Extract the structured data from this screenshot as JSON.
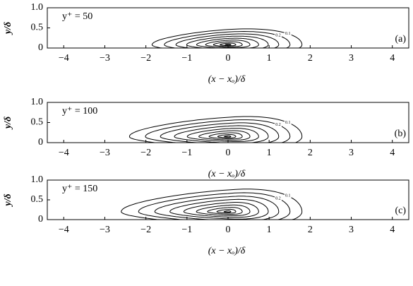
{
  "chart_data": [
    {
      "type": "contour",
      "annotation": "y⁺ = 50",
      "panel_label": "(a)",
      "xlabel": "(x − xₒ)/δ",
      "ylabel": "y/δ",
      "xlim": [
        -4.4,
        4.4
      ],
      "ylim": [
        0,
        1
      ],
      "xticks": [
        {
          "value": -4,
          "label": "−4"
        },
        {
          "value": -3,
          "label": "−3"
        },
        {
          "value": -2,
          "label": "−2"
        },
        {
          "value": -1,
          "label": "−1"
        },
        0,
        1,
        2,
        3,
        4
      ],
      "yticks": [
        0,
        0.5,
        {
          "value": 1,
          "label": "1.0"
        }
      ],
      "levels": [
        0.1,
        0.2,
        0.3,
        0.4,
        0.5,
        0.6,
        0.7,
        0.8,
        0.9
      ]
    },
    {
      "type": "contour",
      "annotation": "y⁺ = 100",
      "panel_label": "(b)",
      "xlabel": "(x − xₒ)/δ",
      "ylabel": "y/δ",
      "xlim": [
        -4.4,
        4.4
      ],
      "ylim": [
        0,
        1
      ],
      "xticks": [
        {
          "value": -4,
          "label": "−4"
        },
        {
          "value": -3,
          "label": "−3"
        },
        {
          "value": -2,
          "label": "−2"
        },
        {
          "value": -1,
          "label": "−1"
        },
        0,
        1,
        2,
        3,
        4
      ],
      "yticks": [
        0,
        0.5,
        {
          "value": 1,
          "label": "1.0"
        }
      ],
      "levels": [
        0.1,
        0.2,
        0.3,
        0.4,
        0.5,
        0.6,
        0.7,
        0.8,
        0.9
      ]
    },
    {
      "type": "contour",
      "annotation": "y⁺ = 150",
      "panel_label": "(c)",
      "xlabel": "(x − xₒ)/δ",
      "ylabel": "y/δ",
      "xlim": [
        -4.4,
        4.4
      ],
      "ylim": [
        0,
        1
      ],
      "xticks": [
        {
          "value": -4,
          "label": "−4"
        },
        {
          "value": -3,
          "label": "−3"
        },
        {
          "value": -2,
          "label": "−2"
        },
        {
          "value": -1,
          "label": "−1"
        },
        0,
        1,
        2,
        3,
        4
      ],
      "yticks": [
        0,
        0.5,
        {
          "value": 1,
          "label": "1.0"
        }
      ],
      "levels": [
        0.1,
        0.2,
        0.3,
        0.4,
        0.5,
        0.6,
        0.7,
        0.8,
        0.9
      ]
    }
  ]
}
